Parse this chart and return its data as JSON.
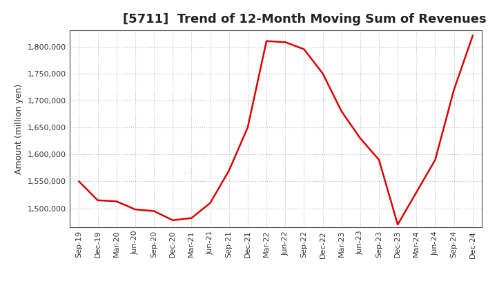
{
  "title": "[5711]  Trend of 12-Month Moving Sum of Revenues",
  "ylabel": "Amount (million yen)",
  "x_labels": [
    "Sep-19",
    "Dec-19",
    "Mar-20",
    "Jun-20",
    "Sep-20",
    "Dec-20",
    "Mar-21",
    "Jun-21",
    "Sep-21",
    "Dec-21",
    "Mar-22",
    "Jun-22",
    "Sep-22",
    "Dec-22",
    "Mar-23",
    "Jun-23",
    "Sep-23",
    "Dec-23",
    "Mar-24",
    "Jun-24",
    "Sep-24",
    "Dec-24"
  ],
  "values": [
    1550000,
    1515000,
    1513000,
    1498000,
    1495000,
    1478000,
    1482000,
    1510000,
    1570000,
    1650000,
    1810000,
    1808000,
    1795000,
    1750000,
    1680000,
    1630000,
    1590000,
    1470000,
    1530000,
    1590000,
    1720000,
    1820000
  ],
  "line_color": "#dd0000",
  "line_width": 1.8,
  "bg_color": "#ffffff",
  "plot_bg_color": "#ffffff",
  "grid_color": "#bbbbbb",
  "title_color": "#222222",
  "ylim_min": 1465000,
  "ylim_max": 1830000,
  "yticks": [
    1500000,
    1550000,
    1600000,
    1650000,
    1700000,
    1750000,
    1800000
  ],
  "title_fontsize": 13,
  "ylabel_fontsize": 9,
  "tick_fontsize": 8
}
